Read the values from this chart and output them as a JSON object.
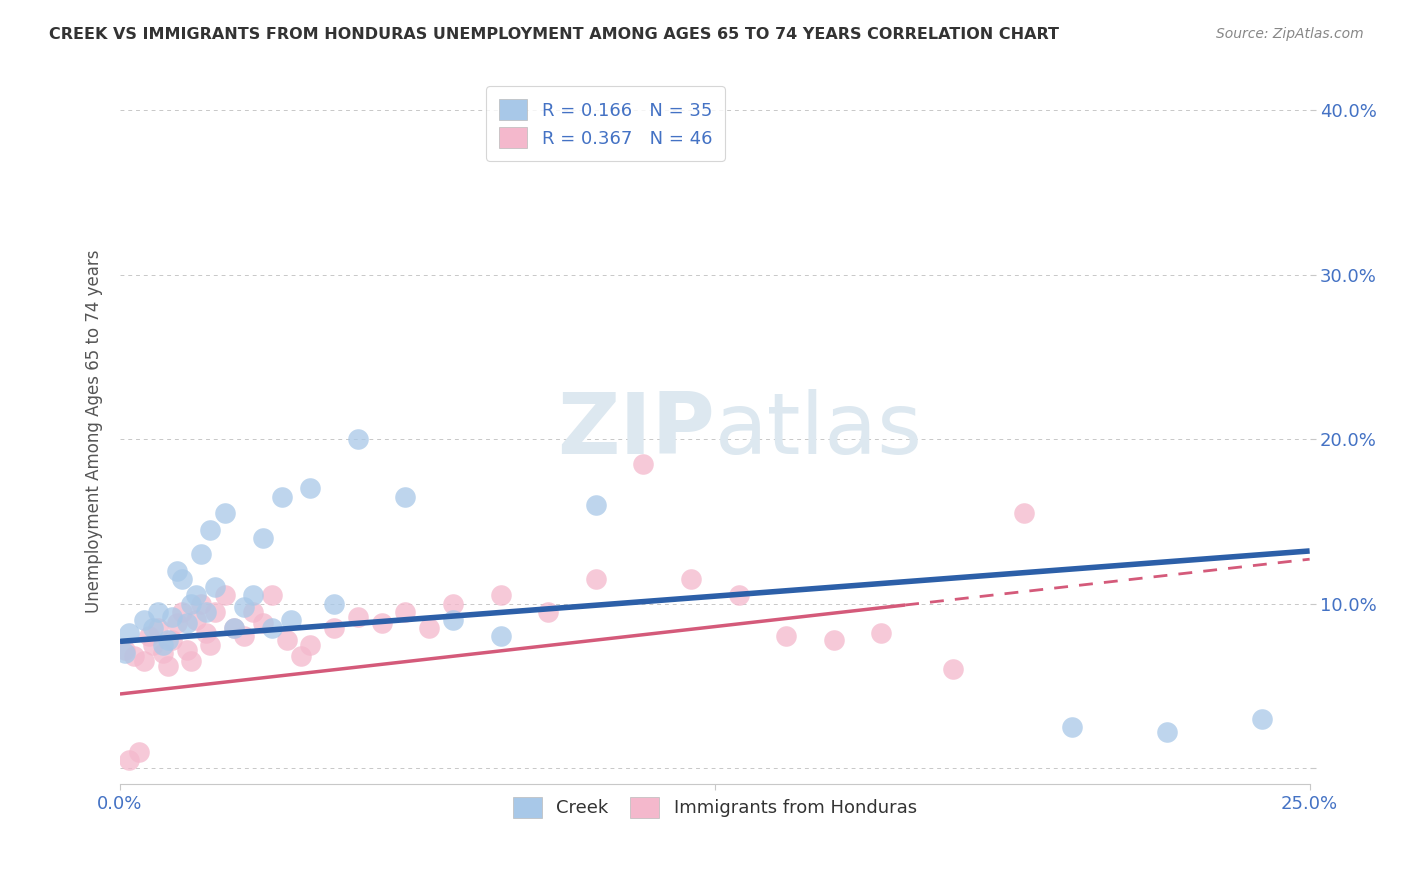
{
  "title": "CREEK VS IMMIGRANTS FROM HONDURAS UNEMPLOYMENT AMONG AGES 65 TO 74 YEARS CORRELATION CHART",
  "source": "Source: ZipAtlas.com",
  "ylabel": "Unemployment Among Ages 65 to 74 years",
  "xlim": [
    0.0,
    0.25
  ],
  "ylim": [
    -0.01,
    0.42
  ],
  "creek_color": "#a8c8e8",
  "honduras_color": "#f4b8cc",
  "creek_line_color": "#2c5fa8",
  "honduras_line_color": "#d45a7a",
  "creek_R": 0.166,
  "creek_N": 35,
  "honduras_R": 0.367,
  "honduras_N": 46,
  "background_color": "#ffffff",
  "grid_color": "#c8c8c8",
  "watermark_color": "#dde8f0",
  "tick_label_color": "#4472c4",
  "title_color": "#333333",
  "source_color": "#888888",
  "ylabel_color": "#555555",
  "creek_line_start_y": 0.077,
  "creek_line_end_y": 0.132,
  "honduras_line_start_y": 0.045,
  "honduras_line_end_y": 0.127,
  "creek_x": [
    0.002,
    0.005,
    0.007,
    0.008,
    0.009,
    0.01,
    0.011,
    0.012,
    0.013,
    0.014,
    0.015,
    0.016,
    0.017,
    0.018,
    0.019,
    0.02,
    0.022,
    0.024,
    0.026,
    0.028,
    0.03,
    0.032,
    0.034,
    0.036,
    0.04,
    0.045,
    0.05,
    0.06,
    0.07,
    0.08,
    0.1,
    0.2,
    0.22,
    0.24,
    0.001
  ],
  "creek_y": [
    0.082,
    0.09,
    0.085,
    0.095,
    0.075,
    0.078,
    0.092,
    0.12,
    0.115,
    0.088,
    0.1,
    0.105,
    0.13,
    0.095,
    0.145,
    0.11,
    0.155,
    0.085,
    0.098,
    0.105,
    0.14,
    0.085,
    0.165,
    0.09,
    0.17,
    0.1,
    0.2,
    0.165,
    0.09,
    0.08,
    0.16,
    0.025,
    0.022,
    0.03,
    0.07
  ],
  "honduras_x": [
    0.001,
    0.003,
    0.005,
    0.006,
    0.007,
    0.008,
    0.009,
    0.01,
    0.011,
    0.012,
    0.013,
    0.014,
    0.015,
    0.016,
    0.017,
    0.018,
    0.019,
    0.02,
    0.022,
    0.024,
    0.026,
    0.028,
    0.03,
    0.032,
    0.035,
    0.038,
    0.04,
    0.045,
    0.05,
    0.055,
    0.06,
    0.065,
    0.07,
    0.08,
    0.09,
    0.1,
    0.11,
    0.12,
    0.13,
    0.14,
    0.15,
    0.16,
    0.175,
    0.19,
    0.002,
    0.004
  ],
  "honduras_y": [
    0.072,
    0.068,
    0.065,
    0.08,
    0.075,
    0.085,
    0.07,
    0.062,
    0.078,
    0.088,
    0.095,
    0.072,
    0.065,
    0.09,
    0.1,
    0.082,
    0.075,
    0.095,
    0.105,
    0.085,
    0.08,
    0.095,
    0.088,
    0.105,
    0.078,
    0.068,
    0.075,
    0.085,
    0.092,
    0.088,
    0.095,
    0.085,
    0.1,
    0.105,
    0.095,
    0.115,
    0.185,
    0.115,
    0.105,
    0.08,
    0.078,
    0.082,
    0.06,
    0.155,
    0.005,
    0.01
  ]
}
